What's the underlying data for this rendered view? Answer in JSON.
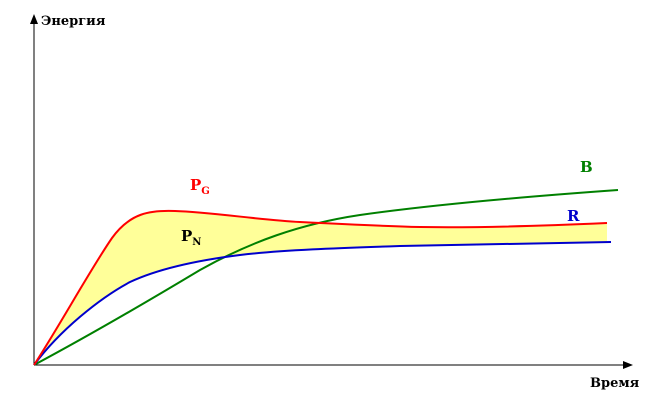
{
  "axes": {
    "y_label": "Энергия",
    "x_label": "Время"
  },
  "curves": {
    "pg": {
      "letter": "P",
      "sub": "G",
      "color": "#ff0000"
    },
    "pn": {
      "letter": "P",
      "sub": "N",
      "color": "#000000"
    },
    "b": {
      "label": "B",
      "color": "#008000"
    },
    "r": {
      "label": "R",
      "color": "#0000cc"
    }
  },
  "fill_color": "#ffff99"
}
